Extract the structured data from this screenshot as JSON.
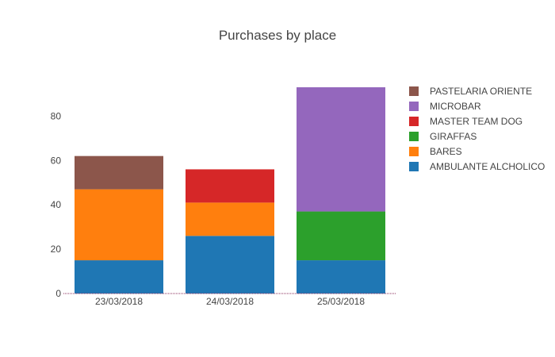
{
  "chart_data": {
    "type": "bar",
    "stacked": true,
    "title": "Purchases by place",
    "categories": [
      "23/03/2018",
      "24/03/2018",
      "25/03/2018"
    ],
    "ylim": [
      0,
      93
    ],
    "yticks": [
      0,
      20,
      40,
      60,
      80
    ],
    "grid": false,
    "legend_position": "right",
    "series": [
      {
        "name": "AMBULANTE ALCHOLICO",
        "color": "#1f77b4",
        "values": [
          15,
          26,
          15
        ]
      },
      {
        "name": "BARES",
        "color": "#ff7f0e",
        "values": [
          32,
          15,
          0
        ]
      },
      {
        "name": "GIRAFFAS",
        "color": "#2ca02c",
        "values": [
          0,
          0,
          22
        ]
      },
      {
        "name": "MASTER TEAM DOG",
        "color": "#d62728",
        "values": [
          0,
          15,
          0
        ]
      },
      {
        "name": "MICROBAR",
        "color": "#9467bd",
        "values": [
          0,
          0,
          56
        ]
      },
      {
        "name": "PASTELARIA ORIENTE",
        "color": "#8c564b",
        "values": [
          15,
          0,
          0
        ]
      }
    ],
    "legend_order": [
      "PASTELARIA ORIENTE",
      "MICROBAR",
      "MASTER TEAM DOG",
      "GIRAFFAS",
      "BARES",
      "AMBULANTE ALCHOLICO"
    ]
  }
}
